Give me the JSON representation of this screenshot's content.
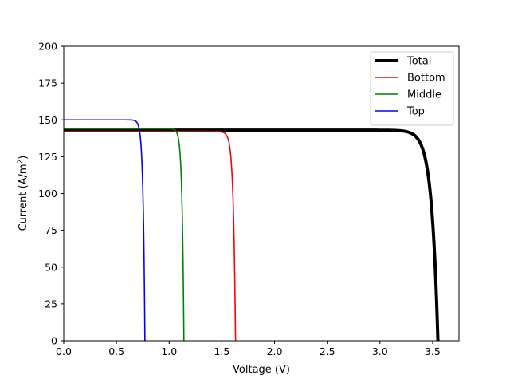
{
  "chart_data": {
    "type": "line",
    "xlabel": "Voltage (V)",
    "ylabel_prefix": "Current (A/m",
    "ylabel_sup": "2",
    "ylabel_suffix": ")",
    "xlim": [
      0,
      3.75
    ],
    "ylim": [
      0,
      200
    ],
    "x_ticks": [
      0.0,
      0.5,
      1.0,
      1.5,
      2.0,
      2.5,
      3.0,
      3.5
    ],
    "x_tick_labels": [
      "0.0",
      "0.5",
      "1.0",
      "1.5",
      "2.0",
      "2.5",
      "3.0",
      "3.5"
    ],
    "y_ticks": [
      0,
      25,
      50,
      75,
      100,
      125,
      150,
      175,
      200
    ],
    "y_tick_labels": [
      "0",
      "25",
      "50",
      "75",
      "100",
      "125",
      "150",
      "175",
      "200"
    ],
    "grid": false,
    "legend_position": "top-right",
    "series": [
      {
        "name": "Total",
        "color": "#000000",
        "width": 4,
        "isc": 143,
        "voc": 3.55,
        "vt": 0.06
      },
      {
        "name": "Bottom",
        "color": "#ff0000",
        "width": 1.6,
        "isc": 142,
        "voc": 1.63,
        "vt": 0.021
      },
      {
        "name": "Middle",
        "color": "#008000",
        "width": 1.6,
        "isc": 144,
        "voc": 1.14,
        "vt": 0.017
      },
      {
        "name": "Top",
        "color": "#0000ff",
        "width": 1.6,
        "isc": 150,
        "voc": 0.77,
        "vt": 0.017
      }
    ]
  }
}
